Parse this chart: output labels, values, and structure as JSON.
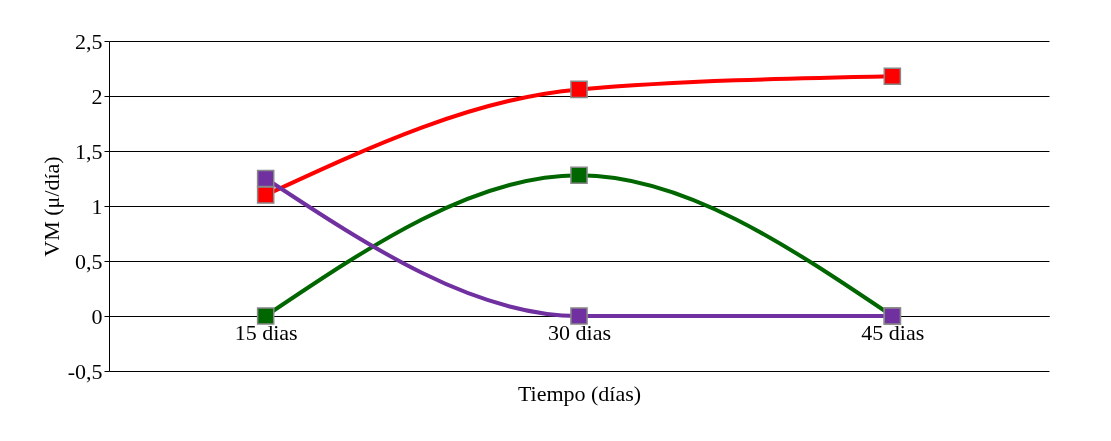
{
  "chart_data": {
    "type": "line",
    "xlabel": "Tiempo (días)",
    "ylabel": "VM (μ/día)",
    "categories": [
      "15 dias",
      "30 dias",
      "45 dias"
    ],
    "series": [
      {
        "color": "#ff0000",
        "values": [
          1.1,
          2.06,
          2.18
        ]
      },
      {
        "color": "#006600",
        "values": [
          0,
          1.28,
          0
        ]
      },
      {
        "color": "#7030a0",
        "values": [
          1.25,
          0,
          0
        ]
      }
    ],
    "ylim": [
      -0.5,
      2.5
    ],
    "yticks": [
      {
        "value": -0.5,
        "label": "-0,5"
      },
      0,
      {
        "value": 0.5,
        "label": "0,5"
      },
      1,
      {
        "value": 1.5,
        "label": "1,5"
      },
      2,
      {
        "value": 2.5,
        "label": "2,5"
      }
    ],
    "grid": "y",
    "marker": "square",
    "line_style": "solid",
    "legend": false
  }
}
